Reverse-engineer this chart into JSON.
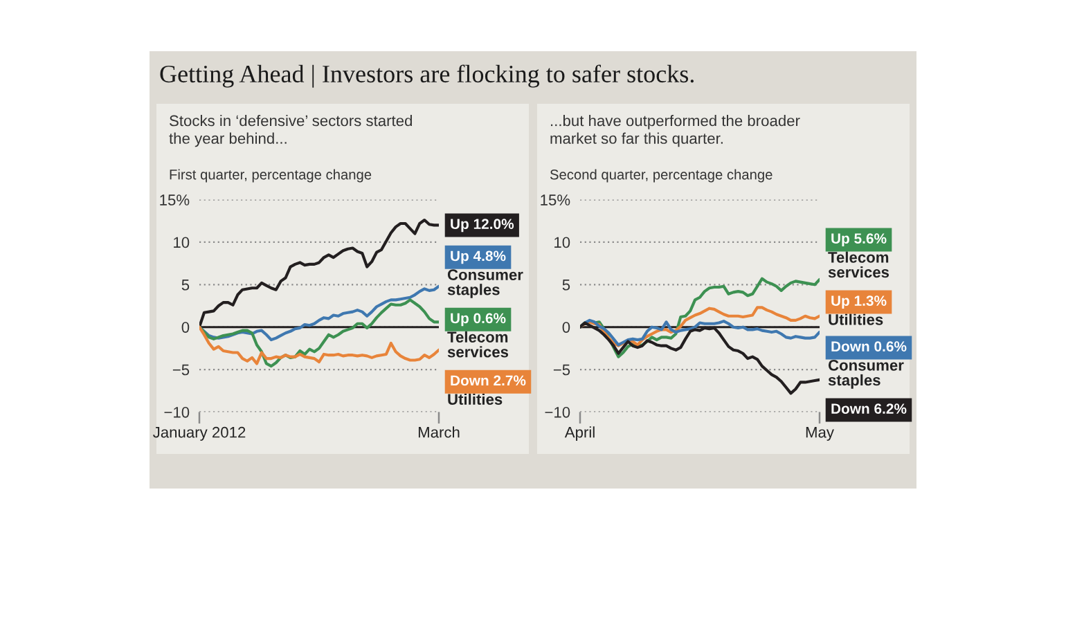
{
  "chart_data": [
    {
      "type": "line",
      "title": "Getting Ahead | Investors are flocking to safer stocks.",
      "subtitle": "Stocks in ‘defensive’ sectors started the year behind...",
      "ylabel": "First quarter, percentage change",
      "categories": [
        "January 2012",
        null,
        null,
        null,
        null,
        null,
        null,
        null,
        null,
        null,
        null,
        null,
        null,
        null,
        null,
        null,
        null,
        null,
        null,
        null,
        null,
        null,
        null,
        null,
        null,
        null,
        null,
        null,
        null,
        null,
        null,
        null,
        null,
        null,
        null,
        null,
        null,
        null,
        null,
        null,
        null,
        null,
        null,
        null,
        null,
        null,
        null,
        null,
        null,
        null,
        "March"
      ],
      "ylim": [
        -10,
        15
      ],
      "yticks": [
        {
          "value": 15,
          "label": "15%"
        },
        10,
        5,
        0,
        {
          "value": -5,
          "label": "−5"
        },
        {
          "value": -10,
          "label": "−10"
        }
      ],
      "grid": "y",
      "legend": "right",
      "ref_lines": [
        {
          "axis": "y",
          "value": 0,
          "color": "#231f20",
          "line_style": "solid"
        }
      ],
      "series": [
        {
          "color": "#231f20",
          "values": [
            0,
            1.7,
            1.8,
            1.9,
            2.5,
            2.9,
            2.9,
            2.6,
            3.8,
            4.4,
            4.5,
            4.6,
            4.6,
            5.2,
            4.9,
            4.6,
            4.4,
            5.4,
            5.8,
            7.1,
            7.4,
            7.6,
            7.3,
            7.4,
            7.4,
            7.6,
            8.2,
            8.5,
            8.2,
            8.6,
            9.0,
            9.2,
            9.3,
            8.9,
            8.7,
            7.1,
            7.7,
            8.8,
            9.1,
            10.1,
            11.1,
            11.8,
            12.2,
            12.2,
            11.6,
            11.0,
            12.2,
            12.6,
            12.1,
            12.0,
            12.0
          ],
          "value_labels": [
            null,
            null,
            null,
            null,
            null,
            null,
            null,
            null,
            null,
            null,
            null,
            null,
            null,
            null,
            null,
            null,
            null,
            null,
            null,
            null,
            null,
            null,
            null,
            null,
            null,
            null,
            null,
            null,
            null,
            null,
            null,
            null,
            null,
            null,
            null,
            null,
            null,
            null,
            null,
            null,
            null,
            null,
            null,
            null,
            null,
            null,
            null,
            null,
            null,
            null,
            "Up 12.0%"
          ]
        },
        {
          "name": "Consumer staples",
          "color": "#3f78b0",
          "values": [
            0,
            -0.5,
            -1.0,
            -1.2,
            -1.3,
            -1.2,
            -1.1,
            -0.9,
            -0.7,
            -0.6,
            -0.7,
            -0.8,
            -0.5,
            -0.4,
            -0.9,
            -1.5,
            -1.3,
            -1.0,
            -0.7,
            -0.5,
            -0.2,
            -0.1,
            0.3,
            0.2,
            0.4,
            0.8,
            1.1,
            1.0,
            1.4,
            1.3,
            1.6,
            1.7,
            1.8,
            2.0,
            1.8,
            1.3,
            1.8,
            2.4,
            2.7,
            3.0,
            3.2,
            3.2,
            3.3,
            3.4,
            3.5,
            3.8,
            4.2,
            4.5,
            4.3,
            4.4,
            4.8
          ],
          "value_labels": [
            null,
            null,
            null,
            null,
            null,
            null,
            null,
            null,
            null,
            null,
            null,
            null,
            null,
            null,
            null,
            null,
            null,
            null,
            null,
            null,
            null,
            null,
            null,
            null,
            null,
            null,
            null,
            null,
            null,
            null,
            null,
            null,
            null,
            null,
            null,
            null,
            null,
            null,
            null,
            null,
            null,
            null,
            null,
            null,
            null,
            null,
            null,
            null,
            null,
            null,
            "Up 4.8%"
          ]
        },
        {
          "name": "Telecom services",
          "color": "#3d9152",
          "values": [
            0,
            -0.6,
            -1.2,
            -1.4,
            -1.2,
            -1.0,
            -0.9,
            -0.8,
            -0.6,
            -0.4,
            -0.4,
            -0.7,
            -2.1,
            -2.9,
            -4.3,
            -4.6,
            -4.2,
            -3.6,
            -3.3,
            -3.6,
            -3.5,
            -2.8,
            -3.2,
            -2.6,
            -2.9,
            -2.5,
            -1.7,
            -0.9,
            -1.2,
            -0.9,
            -0.5,
            -0.3,
            -0.1,
            0.4,
            0.4,
            -0.1,
            0.4,
            1.1,
            1.7,
            2.2,
            2.7,
            2.6,
            2.6,
            2.8,
            3.2,
            2.8,
            2.4,
            1.8,
            1.0,
            0.6,
            0.6
          ],
          "value_labels": [
            null,
            null,
            null,
            null,
            null,
            null,
            null,
            null,
            null,
            null,
            null,
            null,
            null,
            null,
            null,
            null,
            null,
            null,
            null,
            null,
            null,
            null,
            null,
            null,
            null,
            null,
            null,
            null,
            null,
            null,
            null,
            null,
            null,
            null,
            null,
            null,
            null,
            null,
            null,
            null,
            null,
            null,
            null,
            null,
            null,
            null,
            null,
            null,
            null,
            null,
            "Up 0.6%"
          ]
        },
        {
          "name": "Utilities",
          "color": "#e8843a",
          "values": [
            0,
            -0.9,
            -1.9,
            -2.6,
            -2.3,
            -2.8,
            -2.9,
            -3.0,
            -3.0,
            -3.7,
            -4.0,
            -3.6,
            -4.3,
            -3.0,
            -3.7,
            -3.7,
            -3.5,
            -3.6,
            -3.3,
            -3.5,
            -3.5,
            -3.2,
            -3.5,
            -3.6,
            -3.7,
            -4.1,
            -3.2,
            -3.3,
            -3.3,
            -3.2,
            -3.4,
            -3.3,
            -3.3,
            -3.4,
            -3.3,
            -3.4,
            -3.6,
            -3.4,
            -3.3,
            -3.2,
            -1.9,
            -2.9,
            -3.4,
            -3.7,
            -3.9,
            -3.9,
            -3.8,
            -3.3,
            -3.6,
            -3.2,
            -2.7
          ],
          "value_labels": [
            null,
            null,
            null,
            null,
            null,
            null,
            null,
            null,
            null,
            null,
            null,
            null,
            null,
            null,
            null,
            null,
            null,
            null,
            null,
            null,
            null,
            null,
            null,
            null,
            null,
            null,
            null,
            null,
            null,
            null,
            null,
            null,
            null,
            null,
            null,
            null,
            null,
            null,
            null,
            null,
            null,
            null,
            null,
            null,
            null,
            null,
            null,
            null,
            null,
            null,
            "Down 2.7%"
          ]
        }
      ]
    },
    {
      "type": "line",
      "subtitle": "...but have outperformed the broader market so far this quarter.",
      "ylabel": "Second quarter, percentage change",
      "categories": [
        "April",
        null,
        null,
        null,
        null,
        null,
        null,
        null,
        null,
        null,
        null,
        null,
        null,
        null,
        null,
        null,
        null,
        null,
        null,
        null,
        null,
        null,
        null,
        null,
        null,
        null,
        null,
        null,
        null,
        null,
        null,
        null,
        null,
        null,
        null,
        null,
        null,
        null,
        null,
        null,
        null,
        null,
        null,
        null,
        null,
        null,
        null,
        null,
        null,
        null,
        "May"
      ],
      "ylim": [
        -10,
        15
      ],
      "yticks": [
        {
          "value": 15,
          "label": "15%"
        },
        10,
        5,
        0,
        {
          "value": -5,
          "label": "−5"
        },
        {
          "value": -10,
          "label": "−10"
        }
      ],
      "grid": "y",
      "legend": "right",
      "ref_lines": [
        {
          "axis": "y",
          "value": 0,
          "color": "#231f20",
          "line_style": "solid"
        }
      ],
      "series": [
        {
          "name": "Telecom services",
          "color": "#3d9152",
          "values": [
            0,
            0.5,
            0.7,
            0.5,
            0.6,
            -0.2,
            -1.3,
            -2.4,
            -3.5,
            -3.0,
            -2.3,
            -2.0,
            -2.3,
            -2.1,
            -1.7,
            -1.2,
            -1.5,
            -1.2,
            -1.2,
            -1.3,
            -0.8,
            1.2,
            1.3,
            1.9,
            3.2,
            3.5,
            4.2,
            4.6,
            4.7,
            4.7,
            4.8,
            3.9,
            4.1,
            4.2,
            4.1,
            3.7,
            3.9,
            4.8,
            5.7,
            5.3,
            5.1,
            4.8,
            4.3,
            4.8,
            5.2,
            5.4,
            5.3,
            5.2,
            5.1,
            5.0,
            5.6
          ],
          "value_labels": [
            null,
            null,
            null,
            null,
            null,
            null,
            null,
            null,
            null,
            null,
            null,
            null,
            null,
            null,
            null,
            null,
            null,
            null,
            null,
            null,
            null,
            null,
            null,
            null,
            null,
            null,
            null,
            null,
            null,
            null,
            null,
            null,
            null,
            null,
            null,
            null,
            null,
            null,
            null,
            null,
            null,
            null,
            null,
            null,
            null,
            null,
            null,
            null,
            null,
            null,
            "Up 5.6%"
          ]
        },
        {
          "name": "Utilities",
          "color": "#e8843a",
          "values": [
            0,
            0.4,
            0.6,
            0.4,
            0.3,
            -0.6,
            -1.3,
            -1.9,
            -2.2,
            -1.9,
            -1.6,
            -1.7,
            -2.1,
            -1.5,
            -1.1,
            -0.8,
            -0.5,
            -0.3,
            -0.3,
            -0.6,
            -0.4,
            0.1,
            0.8,
            1.1,
            1.4,
            1.6,
            1.9,
            2.2,
            2.1,
            1.8,
            1.5,
            1.3,
            1.3,
            1.3,
            1.2,
            1.3,
            1.4,
            2.3,
            2.3,
            2.0,
            1.8,
            1.5,
            1.3,
            1.1,
            0.8,
            0.8,
            1.0,
            1.3,
            1.1,
            1.0,
            1.3
          ],
          "value_labels": [
            null,
            null,
            null,
            null,
            null,
            null,
            null,
            null,
            null,
            null,
            null,
            null,
            null,
            null,
            null,
            null,
            null,
            null,
            null,
            null,
            null,
            null,
            null,
            null,
            null,
            null,
            null,
            null,
            null,
            null,
            null,
            null,
            null,
            null,
            null,
            null,
            null,
            null,
            null,
            null,
            null,
            null,
            null,
            null,
            null,
            null,
            null,
            null,
            null,
            null,
            "Up 1.3%"
          ]
        },
        {
          "name": "Consumer staples",
          "color": "#3f78b0",
          "values": [
            0,
            0.5,
            0.8,
            0.6,
            0.1,
            -0.2,
            -0.7,
            -1.4,
            -2.1,
            -1.8,
            -1.5,
            -1.4,
            -1.5,
            -1.4,
            -0.5,
            0.0,
            -0.1,
            -0.3,
            0.6,
            -0.3,
            -0.6,
            -0.4,
            -0.3,
            -0.2,
            0.0,
            0.5,
            0.4,
            0.4,
            0.4,
            0.5,
            0.7,
            0.4,
            0.0,
            -0.1,
            0.0,
            -0.3,
            -0.3,
            -0.2,
            -0.4,
            -0.5,
            -0.6,
            -0.5,
            -0.8,
            -1.2,
            -1.3,
            -1.1,
            -1.2,
            -1.3,
            -1.3,
            -1.2,
            -0.6
          ],
          "value_labels": [
            null,
            null,
            null,
            null,
            null,
            null,
            null,
            null,
            null,
            null,
            null,
            null,
            null,
            null,
            null,
            null,
            null,
            null,
            null,
            null,
            null,
            null,
            null,
            null,
            null,
            null,
            null,
            null,
            null,
            null,
            null,
            null,
            null,
            null,
            null,
            null,
            null,
            null,
            null,
            null,
            null,
            null,
            null,
            null,
            null,
            null,
            null,
            null,
            null,
            null,
            "Down 0.6%"
          ]
        },
        {
          "color": "#231f20",
          "values": [
            0,
            0.5,
            0.2,
            -0.1,
            -0.4,
            -0.9,
            -1.5,
            -2.2,
            -3.1,
            -2.4,
            -1.7,
            -2.2,
            -2.4,
            -2.2,
            -1.6,
            -1.8,
            -2.1,
            -2.2,
            -2.2,
            -2.5,
            -2.7,
            -2.4,
            -1.4,
            -0.5,
            -0.3,
            -0.4,
            -0.1,
            -0.2,
            -0.1,
            -0.7,
            -1.5,
            -2.3,
            -2.7,
            -2.8,
            -3.1,
            -3.7,
            -3.5,
            -3.8,
            -4.6,
            -5.1,
            -5.6,
            -5.9,
            -6.4,
            -7.1,
            -7.8,
            -7.3,
            -6.5,
            -6.5,
            -6.4,
            -6.3,
            -6.2
          ],
          "value_labels": [
            null,
            null,
            null,
            null,
            null,
            null,
            null,
            null,
            null,
            null,
            null,
            null,
            null,
            null,
            null,
            null,
            null,
            null,
            null,
            null,
            null,
            null,
            null,
            null,
            null,
            null,
            null,
            null,
            null,
            null,
            null,
            null,
            null,
            null,
            null,
            null,
            null,
            null,
            null,
            null,
            null,
            null,
            null,
            null,
            null,
            null,
            null,
            null,
            null,
            null,
            "Down 6.2%"
          ]
        }
      ]
    }
  ]
}
